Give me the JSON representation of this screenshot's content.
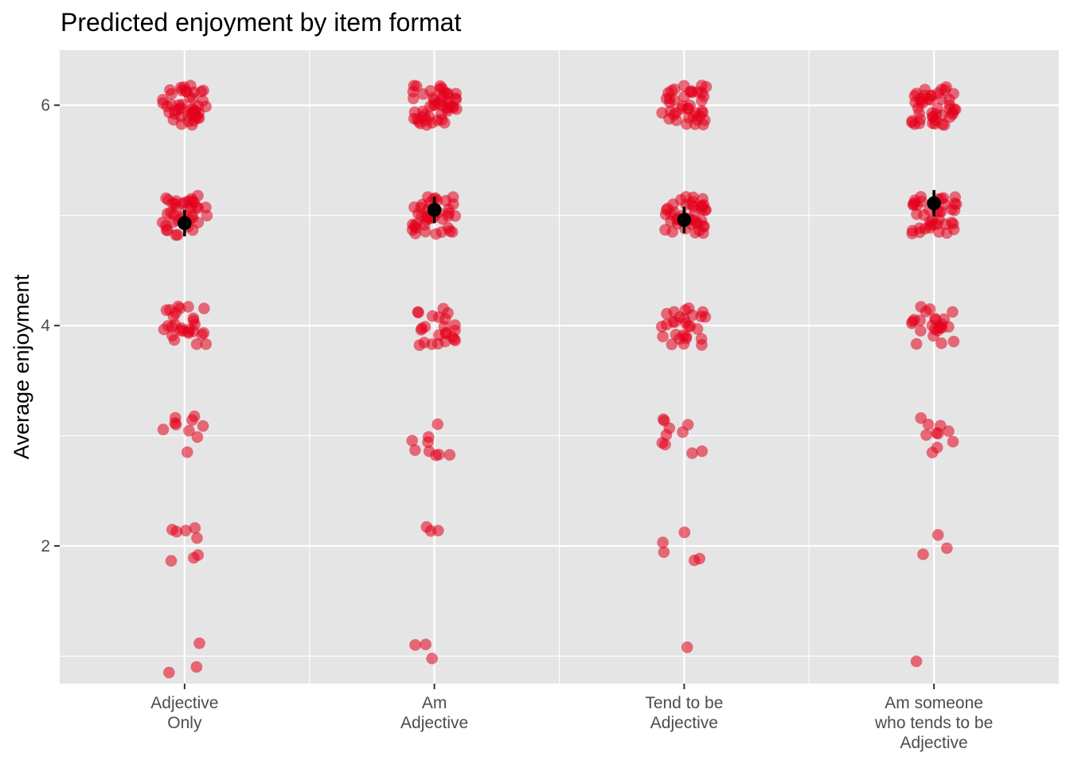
{
  "chart_data": {
    "type": "scatter",
    "title": "Predicted enjoyment by item format",
    "ylabel": "Average enjoyment",
    "xlabel": "",
    "categories": [
      [
        "Adjective",
        "Only"
      ],
      [
        "Am",
        "Adjective"
      ],
      [
        "Tend to be",
        "Adjective"
      ],
      [
        "Am someone",
        "who tends to be",
        "Adjective"
      ]
    ],
    "y_ticks": [
      2,
      4,
      6
    ],
    "ylim": [
      0.75,
      6.5
    ],
    "grid": true,
    "point_color": "#e3001b",
    "mean_color": "#000000",
    "panel_color": "#e5e5e5",
    "raw_points": {
      "levels": [
        6,
        5,
        4,
        3,
        2,
        1
      ],
      "counts": [
        [
          45,
          38,
          28,
          10,
          8,
          3
        ],
        [
          48,
          40,
          24,
          9,
          3,
          3
        ],
        [
          40,
          42,
          28,
          10,
          5,
          1
        ],
        [
          45,
          40,
          24,
          10,
          3,
          1
        ]
      ]
    },
    "means": [
      {
        "mean": 4.93,
        "lower": 4.81,
        "upper": 5.05
      },
      {
        "mean": 5.05,
        "lower": 4.93,
        "upper": 5.17
      },
      {
        "mean": 4.96,
        "lower": 4.84,
        "upper": 5.08
      },
      {
        "mean": 5.11,
        "lower": 4.99,
        "upper": 5.23
      }
    ]
  }
}
